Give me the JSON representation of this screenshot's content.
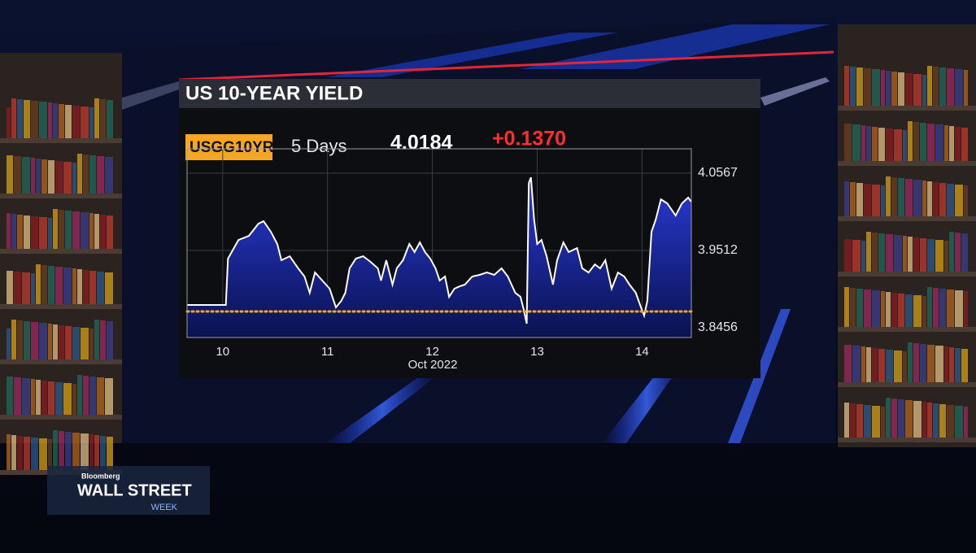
{
  "header": {
    "title": "US 10-YEAR YIELD",
    "ticker": "USGG10YR",
    "period": "5 Days",
    "last": 4.0184,
    "change": "+0.1370"
  },
  "chart_data": {
    "type": "area",
    "x": [
      9.66,
      10.03,
      10.05,
      10.15,
      10.25,
      10.34,
      10.39,
      10.46,
      10.52,
      10.56,
      10.64,
      10.72,
      10.78,
      10.83,
      10.88,
      10.95,
      11.02,
      11.08,
      11.13,
      11.17,
      11.21,
      11.27,
      11.34,
      11.41,
      11.48,
      11.51,
      11.56,
      11.62,
      11.66,
      11.72,
      11.78,
      11.83,
      11.88,
      11.93,
      11.98,
      12.03,
      12.07,
      12.12,
      12.16,
      12.21,
      12.26,
      12.31,
      12.38,
      12.45,
      12.52,
      12.59,
      12.66,
      12.72,
      12.79,
      12.84,
      12.87,
      12.9,
      12.92,
      12.94,
      12.97,
      13.0,
      13.04,
      13.09,
      13.15,
      13.19,
      13.25,
      13.3,
      13.38,
      13.43,
      13.49,
      13.55,
      13.6,
      13.65,
      13.71,
      13.77,
      13.83,
      13.88,
      13.94,
      13.99,
      14.02,
      14.05,
      14.09,
      14.13,
      14.18,
      14.24,
      14.32,
      14.38,
      14.44,
      14.47
    ],
    "series": [
      {
        "color": "#2433c4",
        "values": [
          3.8767,
          3.8767,
          3.94,
          3.9655,
          3.9711,
          3.9877,
          3.9911,
          3.9766,
          3.96,
          3.9378,
          3.9433,
          3.9267,
          3.9156,
          3.8934,
          3.9211,
          3.91,
          3.8989,
          3.8734,
          3.8822,
          3.8934,
          3.9267,
          3.94,
          3.9433,
          3.9356,
          3.9267,
          3.91,
          3.9378,
          3.9045,
          3.9267,
          3.9378,
          3.96,
          3.9489,
          3.9622,
          3.9489,
          3.94,
          3.9267,
          3.91,
          3.9156,
          3.8878,
          3.8989,
          3.9022,
          3.9045,
          3.9156,
          3.9178,
          3.9211,
          3.9178,
          3.9267,
          3.9156,
          3.8934,
          3.8878,
          3.8711,
          3.8512,
          4.0433,
          4.051,
          3.9933,
          3.96,
          3.9655,
          3.9433,
          3.9045,
          3.9378,
          3.9622,
          3.9489,
          3.9544,
          3.9267,
          3.9211,
          3.9322,
          3.9267,
          3.9378,
          3.8989,
          3.9211,
          3.9156,
          3.9045,
          3.8934,
          3.8734,
          3.8623,
          3.8822,
          3.9766,
          3.9933,
          4.021,
          4.0155,
          3.9988,
          4.0155,
          4.0233,
          4.0177
        ]
      }
    ],
    "xlabel": "Oct 2022",
    "xlim": [
      9.66,
      14.47
    ],
    "xticks": [
      10,
      11,
      12,
      13,
      14
    ],
    "ylim": [
      3.8323,
      4.09
    ],
    "yticks": [
      3.8456,
      3.9512,
      4.0567
    ],
    "grid": true,
    "reference_line": 3.8678,
    "reference_color": "#f5a623"
  },
  "logo": {
    "brand": "Bloomberg",
    "show": "WALL STREET",
    "subtitle": "WEEK"
  }
}
